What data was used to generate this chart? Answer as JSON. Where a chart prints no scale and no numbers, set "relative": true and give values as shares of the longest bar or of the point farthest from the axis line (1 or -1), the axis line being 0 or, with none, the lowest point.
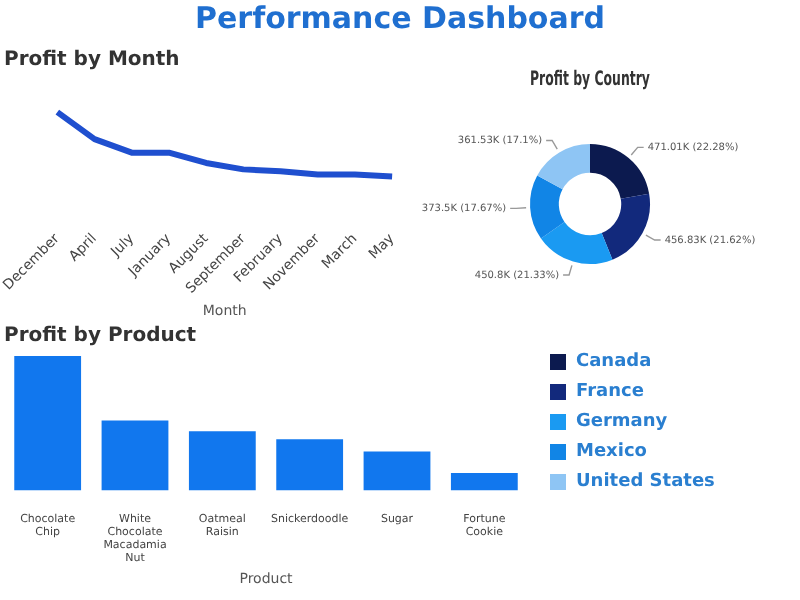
{
  "chart_data": [
    {
      "type": "other",
      "title": "Performance Dashboard"
    },
    {
      "type": "line",
      "title": "Profit by Month",
      "xlabel": "Month",
      "relative": true,
      "marker": "none",
      "legend": false,
      "categories": [
        "December",
        "April",
        "July",
        "January",
        "August",
        "September",
        "February",
        "November",
        "March",
        "May"
      ],
      "series": [
        {
          "color": "#1f4fcf",
          "values": [
            1,
            0.58,
            0.37,
            0.37,
            0.21,
            0.11,
            0.08,
            0.03,
            0.03,
            0
          ]
        }
      ]
    },
    {
      "type": "donut",
      "title": "Profit by Country",
      "legend": "bottom",
      "categories": [
        "Canada",
        "France",
        "Germany",
        "Mexico",
        "United States"
      ],
      "values": [
        471010,
        456830,
        450800,
        373500,
        361530
      ],
      "value_labels": [
        "471.01K (22.28%)",
        "456.83K (21.62%)",
        "450.8K (21.33%)",
        "373.5K (17.67%)",
        "361.53K (17.1%)"
      ],
      "colors": [
        "#0c1a4f",
        "#12297c",
        "#1a9af2",
        "#1185e6",
        "#8ec5f4"
      ]
    },
    {
      "type": "bar",
      "title": "Profit by Product",
      "xlabel": "Product",
      "relative": true,
      "legend": false,
      "categories": [
        "Chocolate Chip",
        "White Chocolate Macadamia Nut",
        "Oatmeal Raisin",
        "Snickerdoodle",
        "Sugar",
        "Fortune Cookie"
      ],
      "series": [
        {
          "color": "#1177ee",
          "values": [
            1,
            0.52,
            0.44,
            0.38,
            0.29,
            0.13
          ]
        }
      ]
    }
  ]
}
